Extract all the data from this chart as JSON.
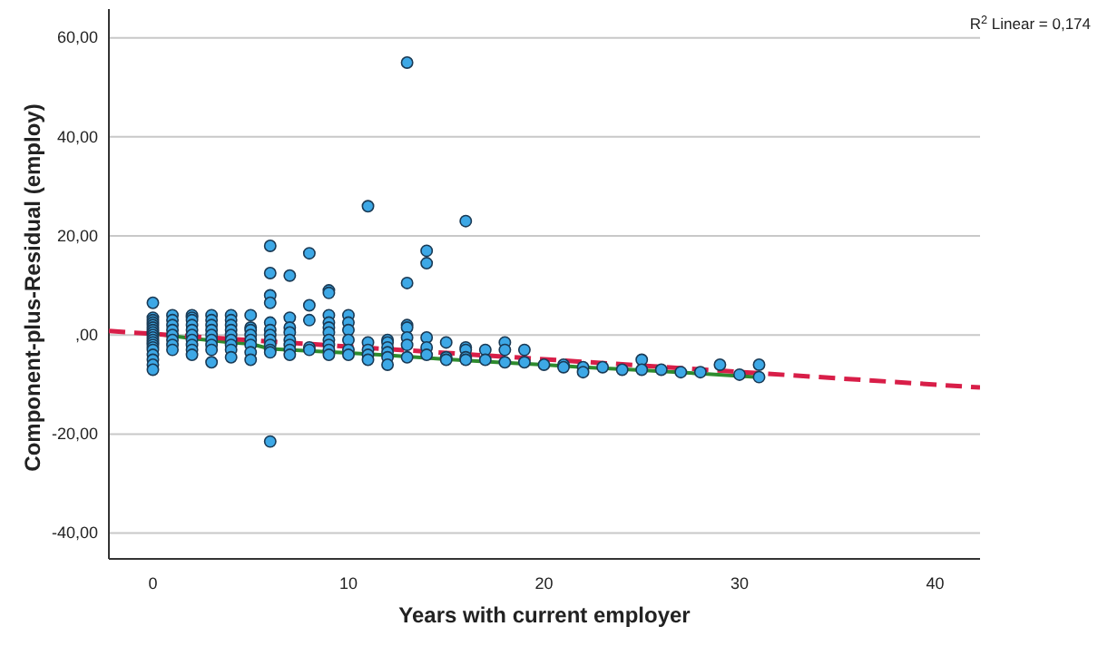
{
  "chart_data": {
    "type": "scatter",
    "xlabel": "Years with current employer",
    "ylabel": "Component-plus-Residual (employ)",
    "annotations": [
      "R$^{2}$ Linear = 0,174"
    ],
    "xlim": [
      -2.25,
      42.3
    ],
    "ylim": [
      -45.2,
      65.8
    ],
    "xticks": [
      0,
      10,
      20,
      30,
      40
    ],
    "yticks": [
      {
        "value": -40,
        "label": "-40,00"
      },
      {
        "value": -20,
        "label": "-20,00"
      },
      {
        "value": 0,
        "label": ",00"
      },
      {
        "value": 20,
        "label": "20,00"
      },
      {
        "value": 40,
        "label": "40,00"
      },
      {
        "value": 60,
        "label": "60,00"
      }
    ],
    "grid": "y",
    "series": [
      {
        "marker": "circle",
        "color": "#3da8e6",
        "x": [
          0,
          0,
          0,
          0,
          0,
          0,
          0,
          0,
          0,
          0,
          0,
          0,
          0,
          0,
          0,
          0,
          0,
          0,
          0,
          1,
          1,
          1,
          1,
          1,
          1,
          1,
          1,
          2,
          2,
          2,
          2,
          2,
          2,
          2,
          2,
          2,
          2,
          3,
          3,
          3,
          3,
          3,
          3,
          3,
          3,
          3,
          4,
          4,
          4,
          4,
          4,
          4,
          4,
          4,
          4,
          5,
          5,
          5,
          5,
          5,
          5,
          5,
          5,
          6,
          6,
          6,
          6,
          6,
          6,
          6,
          6,
          6,
          6,
          6,
          6,
          7,
          7,
          7,
          7,
          7,
          7,
          7,
          7,
          8,
          8,
          8,
          8,
          8,
          9,
          9,
          9,
          9,
          9,
          9,
          9,
          9,
          9,
          9,
          10,
          10,
          10,
          10,
          10,
          10,
          11,
          11,
          11,
          11,
          11,
          12,
          12,
          12,
          12,
          12,
          12,
          13,
          13,
          13,
          13,
          13,
          13,
          13,
          14,
          14,
          14,
          14,
          14,
          15,
          15,
          15,
          16,
          16,
          16,
          16,
          16,
          17,
          17,
          18,
          18,
          18,
          19,
          19,
          20,
          21,
          21,
          22,
          22,
          23,
          24,
          25,
          25,
          26,
          27,
          28,
          29,
          30,
          31,
          31
        ],
        "values": [
          6.5,
          3.5,
          3,
          2.5,
          2,
          1.5,
          1,
          0.5,
          0,
          -0.5,
          -1,
          -1.5,
          -2,
          -2.5,
          -3,
          -4,
          -5,
          -6,
          -7,
          4,
          3,
          2,
          1,
          0,
          -1,
          -2,
          -3,
          4,
          3.5,
          3,
          2,
          1,
          0,
          -1,
          -2,
          -3,
          -4,
          4,
          3,
          2,
          1,
          0,
          -1,
          -2,
          -3,
          -5.5,
          4,
          3,
          2,
          1,
          0,
          -1,
          -2,
          -3,
          -4.5,
          4,
          1.5,
          1,
          0,
          -1,
          -2,
          -3.5,
          -5,
          18,
          12.5,
          8,
          6.5,
          2.5,
          1,
          0,
          -1,
          -2,
          -3,
          -3.5,
          -21.5,
          12,
          3.5,
          1.5,
          0.5,
          -1,
          -2,
          -3,
          -4,
          16.5,
          6,
          3,
          -2.5,
          -3,
          9,
          8.5,
          4,
          2.5,
          1.5,
          0.5,
          -1,
          -2,
          -3,
          -4,
          4,
          2.5,
          1,
          -1,
          -3,
          -4,
          26,
          -1.5,
          -3,
          -4,
          -5,
          -1,
          -1.5,
          -2.5,
          -3.5,
          -4.5,
          -6,
          55,
          10.5,
          2,
          1.5,
          -0.5,
          -2,
          -4.5,
          17,
          14.5,
          -0.5,
          -2.5,
          -4,
          -1.5,
          -4.5,
          -5,
          23,
          -2.5,
          -3,
          -4.5,
          -5,
          -3,
          -5,
          -1.5,
          -3,
          -5.5,
          -3,
          -5.5,
          -6,
          -6,
          -6.5,
          -6.5,
          -7.5,
          -6.5,
          -7,
          -5,
          -7,
          -7,
          -7.5,
          -7.5,
          -6,
          -8,
          -6,
          -8.5
        ]
      },
      {
        "type": "line",
        "color": "#2e8b2e",
        "line_style": "solid",
        "x": [
          0,
          2,
          4,
          5,
          6,
          8,
          10,
          12,
          15,
          18,
          20,
          22,
          25,
          28,
          31
        ],
        "values": [
          0.3,
          -0.7,
          -1.5,
          -1.8,
          -2.8,
          -3.2,
          -3.6,
          -4.1,
          -4.9,
          -5.6,
          -6,
          -6.5,
          -7.1,
          -7.8,
          -8.5
        ]
      },
      {
        "type": "line",
        "color": "#d81e48",
        "line_style": "dashed",
        "x": [
          -2.25,
          42.3
        ],
        "values": [
          0.8,
          -10.6
        ]
      }
    ]
  }
}
